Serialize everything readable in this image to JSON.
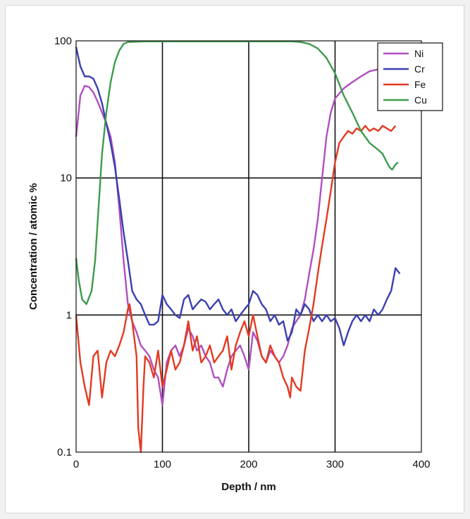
{
  "chart_data": {
    "type": "line",
    "xlabel": "Depth / nm",
    "ylabel": "Concentration / atomic %",
    "xlim": [
      0,
      400
    ],
    "ylim": [
      0.1,
      100
    ],
    "yscale": "log",
    "grid": true,
    "legend_position": "top-right",
    "x_ticks": [
      0,
      100,
      200,
      300,
      400
    ],
    "y_ticks": [
      0.1,
      1,
      10,
      100
    ],
    "x_tick_labels": [
      "0",
      "100",
      "200",
      "300",
      "400"
    ],
    "y_tick_labels": [
      "0.1",
      "1",
      "10",
      "100"
    ],
    "series": [
      {
        "name": "Ni",
        "color": "#b04fc0",
        "points": [
          [
            0,
            20
          ],
          [
            5,
            40
          ],
          [
            10,
            47
          ],
          [
            15,
            46
          ],
          [
            20,
            42
          ],
          [
            25,
            36
          ],
          [
            30,
            30
          ],
          [
            35,
            25
          ],
          [
            40,
            20
          ],
          [
            45,
            13
          ],
          [
            50,
            6
          ],
          [
            55,
            2.5
          ],
          [
            60,
            1.2
          ],
          [
            65,
            0.9
          ],
          [
            70,
            0.75
          ],
          [
            75,
            0.6
          ],
          [
            80,
            0.55
          ],
          [
            85,
            0.5
          ],
          [
            90,
            0.4
          ],
          [
            95,
            0.35
          ],
          [
            100,
            0.22
          ],
          [
            105,
            0.45
          ],
          [
            110,
            0.55
          ],
          [
            115,
            0.6
          ],
          [
            120,
            0.5
          ],
          [
            125,
            0.6
          ],
          [
            130,
            0.8
          ],
          [
            135,
            0.7
          ],
          [
            140,
            0.55
          ],
          [
            145,
            0.6
          ],
          [
            150,
            0.5
          ],
          [
            155,
            0.45
          ],
          [
            160,
            0.35
          ],
          [
            165,
            0.35
          ],
          [
            170,
            0.3
          ],
          [
            175,
            0.4
          ],
          [
            180,
            0.5
          ],
          [
            185,
            0.55
          ],
          [
            190,
            0.6
          ],
          [
            195,
            0.5
          ],
          [
            200,
            0.4
          ],
          [
            205,
            0.75
          ],
          [
            210,
            0.65
          ],
          [
            215,
            0.5
          ],
          [
            220,
            0.45
          ],
          [
            225,
            0.55
          ],
          [
            230,
            0.5
          ],
          [
            235,
            0.45
          ],
          [
            240,
            0.5
          ],
          [
            245,
            0.6
          ],
          [
            250,
            0.8
          ],
          [
            255,
            0.9
          ],
          [
            260,
            1.0
          ],
          [
            265,
            1.3
          ],
          [
            270,
            2
          ],
          [
            275,
            3
          ],
          [
            280,
            5
          ],
          [
            285,
            10
          ],
          [
            290,
            20
          ],
          [
            295,
            30
          ],
          [
            300,
            38
          ],
          [
            310,
            45
          ],
          [
            320,
            50
          ],
          [
            330,
            55
          ],
          [
            340,
            60
          ],
          [
            350,
            62
          ],
          [
            360,
            60
          ],
          [
            370,
            58
          ]
        ]
      },
      {
        "name": "Cr",
        "color": "#3a3fb0",
        "points": [
          [
            0,
            90
          ],
          [
            5,
            65
          ],
          [
            10,
            55
          ],
          [
            15,
            55
          ],
          [
            20,
            53
          ],
          [
            25,
            45
          ],
          [
            30,
            35
          ],
          [
            35,
            25
          ],
          [
            40,
            18
          ],
          [
            45,
            12
          ],
          [
            50,
            7
          ],
          [
            55,
            4
          ],
          [
            60,
            2.5
          ],
          [
            65,
            1.5
          ],
          [
            70,
            1.3
          ],
          [
            75,
            1.2
          ],
          [
            80,
            1.0
          ],
          [
            85,
            0.85
          ],
          [
            90,
            0.85
          ],
          [
            95,
            0.9
          ],
          [
            100,
            1.4
          ],
          [
            105,
            1.2
          ],
          [
            110,
            1.1
          ],
          [
            115,
            1.0
          ],
          [
            120,
            0.95
          ],
          [
            125,
            1.3
          ],
          [
            130,
            1.4
          ],
          [
            135,
            1.1
          ],
          [
            140,
            1.2
          ],
          [
            145,
            1.3
          ],
          [
            150,
            1.25
          ],
          [
            155,
            1.1
          ],
          [
            160,
            1.2
          ],
          [
            165,
            1.3
          ],
          [
            170,
            1.1
          ],
          [
            175,
            1.0
          ],
          [
            180,
            1.1
          ],
          [
            185,
            0.9
          ],
          [
            190,
            1.0
          ],
          [
            195,
            1.1
          ],
          [
            200,
            1.2
          ],
          [
            205,
            1.5
          ],
          [
            210,
            1.4
          ],
          [
            215,
            1.2
          ],
          [
            220,
            1.1
          ],
          [
            225,
            0.9
          ],
          [
            230,
            1.0
          ],
          [
            235,
            0.85
          ],
          [
            240,
            0.9
          ],
          [
            245,
            0.65
          ],
          [
            250,
            0.75
          ],
          [
            255,
            1.1
          ],
          [
            260,
            1.0
          ],
          [
            265,
            1.2
          ],
          [
            270,
            1.1
          ],
          [
            275,
            0.9
          ],
          [
            280,
            1.0
          ],
          [
            285,
            0.9
          ],
          [
            290,
            1.0
          ],
          [
            295,
            0.9
          ],
          [
            300,
            0.95
          ],
          [
            305,
            0.8
          ],
          [
            310,
            0.6
          ],
          [
            315,
            0.75
          ],
          [
            320,
            0.9
          ],
          [
            325,
            1.0
          ],
          [
            330,
            0.9
          ],
          [
            335,
            1.0
          ],
          [
            340,
            0.9
          ],
          [
            345,
            1.1
          ],
          [
            350,
            1.0
          ],
          [
            355,
            1.1
          ],
          [
            360,
            1.3
          ],
          [
            365,
            1.5
          ],
          [
            370,
            2.2
          ],
          [
            375,
            2.0
          ]
        ]
      },
      {
        "name": "Fe",
        "color": "#e33a22",
        "points": [
          [
            0,
            1.0
          ],
          [
            5,
            0.45
          ],
          [
            10,
            0.3
          ],
          [
            15,
            0.22
          ],
          [
            20,
            0.5
          ],
          [
            25,
            0.55
          ],
          [
            30,
            0.25
          ],
          [
            35,
            0.45
          ],
          [
            40,
            0.55
          ],
          [
            45,
            0.5
          ],
          [
            50,
            0.6
          ],
          [
            55,
            0.75
          ],
          [
            60,
            1.1
          ],
          [
            62,
            1.2
          ],
          [
            65,
            0.9
          ],
          [
            70,
            0.5
          ],
          [
            72,
            0.15
          ],
          [
            75,
            0.1
          ],
          [
            78,
            0.3
          ],
          [
            80,
            0.5
          ],
          [
            85,
            0.45
          ],
          [
            90,
            0.35
          ],
          [
            95,
            0.55
          ],
          [
            100,
            0.3
          ],
          [
            105,
            0.4
          ],
          [
            110,
            0.55
          ],
          [
            115,
            0.4
          ],
          [
            120,
            0.45
          ],
          [
            125,
            0.6
          ],
          [
            130,
            0.9
          ],
          [
            135,
            0.55
          ],
          [
            140,
            0.7
          ],
          [
            145,
            0.45
          ],
          [
            150,
            0.5
          ],
          [
            155,
            0.6
          ],
          [
            160,
            0.45
          ],
          [
            165,
            0.5
          ],
          [
            170,
            0.55
          ],
          [
            175,
            0.7
          ],
          [
            180,
            0.4
          ],
          [
            185,
            0.6
          ],
          [
            190,
            0.75
          ],
          [
            195,
            0.9
          ],
          [
            200,
            0.7
          ],
          [
            205,
            1.0
          ],
          [
            210,
            0.7
          ],
          [
            215,
            0.5
          ],
          [
            220,
            0.45
          ],
          [
            225,
            0.6
          ],
          [
            230,
            0.5
          ],
          [
            235,
            0.45
          ],
          [
            240,
            0.35
          ],
          [
            245,
            0.3
          ],
          [
            248,
            0.25
          ],
          [
            250,
            0.35
          ],
          [
            255,
            0.3
          ],
          [
            260,
            0.28
          ],
          [
            265,
            0.55
          ],
          [
            270,
            0.8
          ],
          [
            275,
            1.2
          ],
          [
            280,
            2.0
          ],
          [
            285,
            3.2
          ],
          [
            290,
            5
          ],
          [
            295,
            8
          ],
          [
            300,
            13
          ],
          [
            305,
            18
          ],
          [
            310,
            20
          ],
          [
            315,
            22
          ],
          [
            320,
            21
          ],
          [
            325,
            23
          ],
          [
            330,
            22
          ],
          [
            335,
            24
          ],
          [
            340,
            22
          ],
          [
            345,
            23
          ],
          [
            350,
            22
          ],
          [
            355,
            24
          ],
          [
            360,
            23
          ],
          [
            365,
            22
          ],
          [
            370,
            24
          ]
        ]
      },
      {
        "name": "Cu",
        "color": "#3e9b4d",
        "points": [
          [
            0,
            2.6
          ],
          [
            3,
            1.8
          ],
          [
            7,
            1.3
          ],
          [
            12,
            1.2
          ],
          [
            18,
            1.5
          ],
          [
            22,
            2.5
          ],
          [
            26,
            6
          ],
          [
            30,
            15
          ],
          [
            35,
            30
          ],
          [
            40,
            50
          ],
          [
            45,
            70
          ],
          [
            50,
            85
          ],
          [
            55,
            95
          ],
          [
            60,
            98
          ],
          [
            80,
            99
          ],
          [
            100,
            99
          ],
          [
            150,
            99
          ],
          [
            200,
            99
          ],
          [
            250,
            99
          ],
          [
            260,
            98
          ],
          [
            270,
            95
          ],
          [
            280,
            88
          ],
          [
            290,
            75
          ],
          [
            300,
            58
          ],
          [
            310,
            40
          ],
          [
            320,
            30
          ],
          [
            330,
            22
          ],
          [
            340,
            18
          ],
          [
            350,
            16
          ],
          [
            355,
            15
          ],
          [
            360,
            13
          ],
          [
            363,
            12
          ],
          [
            366,
            11.5
          ],
          [
            370,
            12.5
          ],
          [
            373,
            13
          ]
        ]
      }
    ]
  }
}
